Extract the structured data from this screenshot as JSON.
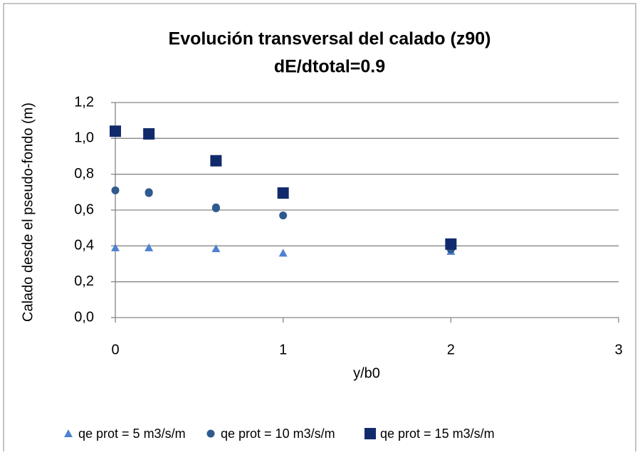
{
  "chart_data": {
    "type": "scatter",
    "title": "Evolución transversal del calado  (z90)",
    "subtitle": "dE/dtotal=0.9",
    "x_label": "y/b0",
    "y_label": "Calado desde el pseudo-fondo  (m)",
    "xlim": [
      0,
      3
    ],
    "xticks": [
      0,
      1,
      2,
      3
    ],
    "ylim": [
      0,
      1.2
    ],
    "yticks": [
      {
        "value": 0,
        "label": "0,0"
      },
      {
        "value": 0.2,
        "label": "0,2"
      },
      {
        "value": 0.4,
        "label": "0,4"
      },
      {
        "value": 0.6,
        "label": "0,6"
      },
      {
        "value": 0.8,
        "label": "0,8"
      },
      {
        "value": 1.0,
        "label": "1,0"
      },
      {
        "value": 1.2,
        "label": "1,2"
      }
    ],
    "grid": true,
    "legend": "bottom",
    "series": [
      {
        "name": "qe prot = 5 m3/s/m",
        "color": "#4f81d0",
        "marker": "triangle",
        "x": [
          0,
          0.2,
          0.6,
          1,
          2
        ],
        "values": [
          0.39,
          0.39,
          0.385,
          0.36,
          0.37
        ]
      },
      {
        "name": "qe prot = 10 m3/s/m",
        "color": "#2e5a8e",
        "marker": "circle",
        "x": [
          0,
          0.2,
          0.2,
          0.6,
          0.6,
          1,
          2,
          2
        ],
        "values": [
          0.71,
          0.7,
          0.695,
          0.615,
          0.61,
          0.57,
          0.39,
          0.38
        ]
      },
      {
        "name": "qe prot = 15 m3/s/m",
        "color": "#112a6b",
        "marker": "square",
        "x": [
          0,
          0.2,
          0.6,
          1,
          2
        ],
        "values": [
          1.04,
          1.025,
          0.875,
          0.695,
          0.41
        ]
      }
    ]
  }
}
